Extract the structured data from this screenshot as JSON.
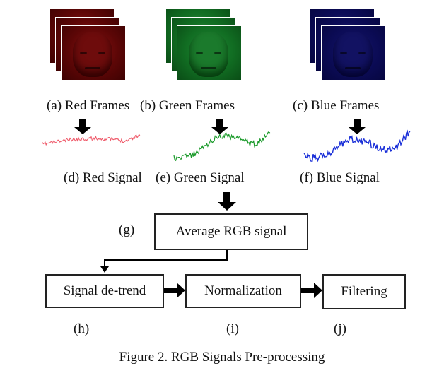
{
  "frames": {
    "red_label": "(a) Red Frames",
    "green_label": "(b) Green Frames",
    "blue_label": "(c) Blue Frames"
  },
  "signals": {
    "red_label": "(d) Red Signal",
    "green_label": "(e) Green Signal",
    "blue_label": "(f) Blue Signal",
    "colors": {
      "red": "#ef5a6a",
      "green": "#1a9a2a",
      "blue": "#1a2fd8"
    }
  },
  "steps": {
    "average": {
      "tag": "(g)",
      "label": "Average RGB signal"
    },
    "detrend": {
      "tag": "(h)",
      "label": "Signal de-trend"
    },
    "normalization": {
      "tag": "(i)",
      "label": "Normalization"
    },
    "filtering": {
      "tag": "(j)",
      "label": "Filtering"
    }
  },
  "caption": "Figure 2. RGB Signals Pre-processing"
}
